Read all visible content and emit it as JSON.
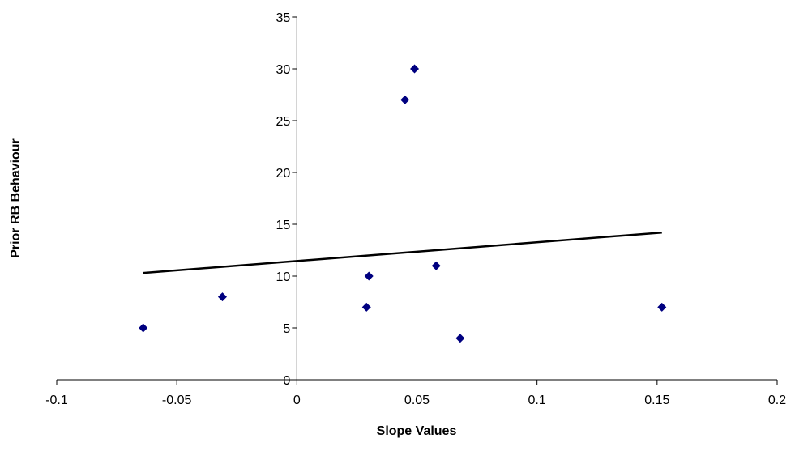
{
  "chart_data": {
    "type": "scatter",
    "x_label": "Slope Values",
    "y_label": "Prior RB Behaviour",
    "xlim": [
      -0.1,
      0.2
    ],
    "xticks": [
      -0.1,
      -0.05,
      0,
      0.05,
      0.1,
      0.15,
      0.2
    ],
    "ylim": [
      0,
      35
    ],
    "yticks": [
      0,
      5,
      10,
      15,
      20,
      25,
      30,
      35
    ],
    "grid": false,
    "series": [
      {
        "type": "scatter",
        "color": "#000080",
        "x": [
          -0.064,
          -0.031,
          0.029,
          0.03,
          0.045,
          0.049,
          0.058,
          0.068,
          0.152
        ],
        "values": [
          5,
          8,
          7,
          10,
          27,
          30,
          11,
          4,
          7
        ]
      },
      {
        "type": "line",
        "color": "#000000",
        "x": [
          -0.064,
          0.152
        ],
        "values": [
          10.3,
          14.2
        ]
      }
    ]
  }
}
